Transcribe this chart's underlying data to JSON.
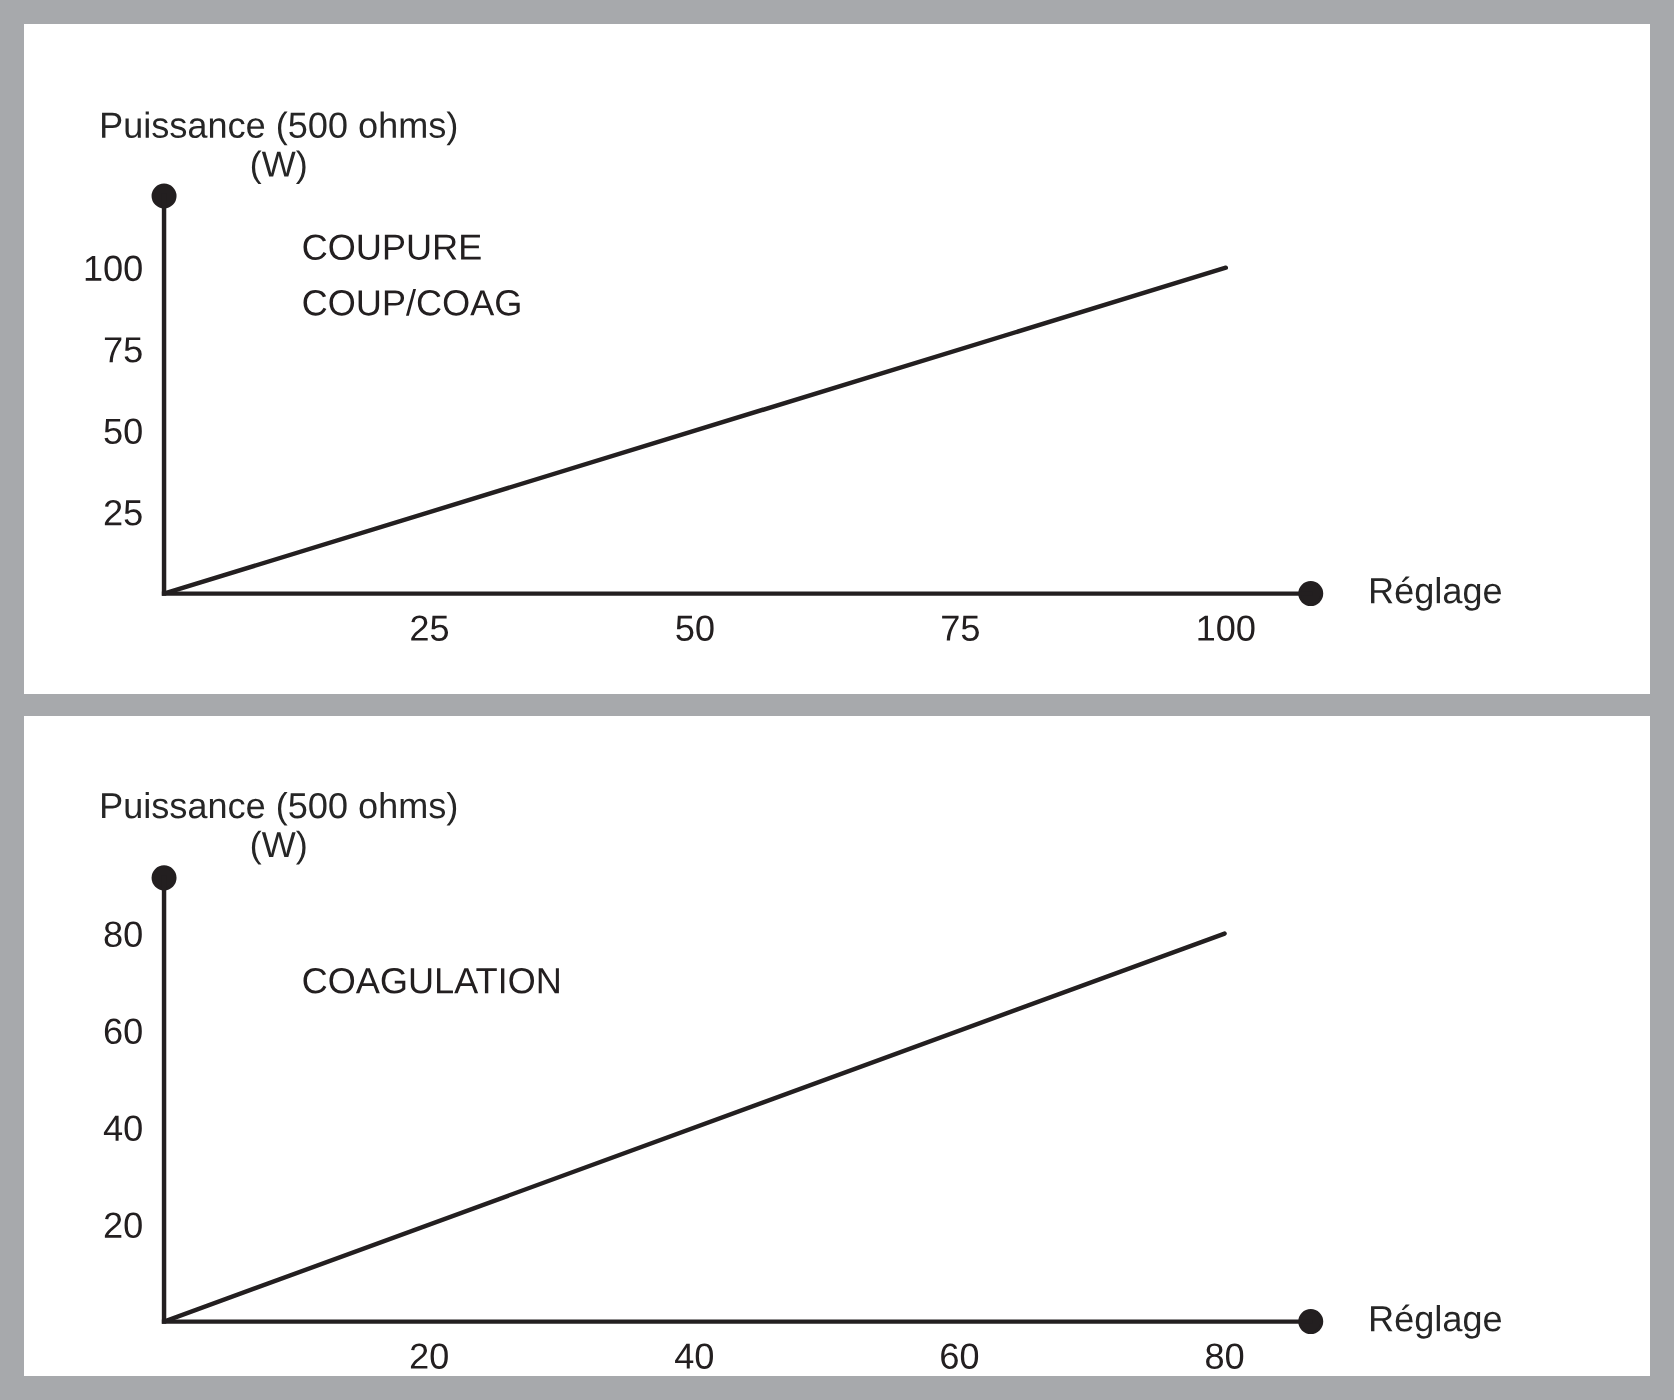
{
  "chart_data": [
    {
      "type": "line",
      "ylabel": "Puissance (500 ohms)\n(W)",
      "xlabel": "Réglage",
      "x": [
        0,
        100
      ],
      "series": [
        {
          "color": "#231f20",
          "values": [
            0,
            100
          ]
        }
      ],
      "xlim": [
        0,
        108
      ],
      "ylim": [
        0,
        122
      ],
      "xticks": [
        25,
        50,
        75,
        100
      ],
      "yticks": [
        25,
        50,
        75,
        100
      ],
      "annotations": [
        "COUPURE",
        "COUP/COAG"
      ],
      "grid": false,
      "marker": "none",
      "line_style": "solid"
    },
    {
      "type": "line",
      "ylabel": "Puissance (500 ohms)\n(W)",
      "xlabel": "Réglage",
      "x": [
        0,
        80
      ],
      "series": [
        {
          "color": "#231f20",
          "values": [
            0,
            80
          ]
        }
      ],
      "xlim": [
        0,
        86.5
      ],
      "ylim": [
        0,
        91.5
      ],
      "xticks": [
        20,
        40,
        60,
        80
      ],
      "yticks": [
        20,
        40,
        60,
        80
      ],
      "annotations": [
        "COAGULATION"
      ],
      "grid": false,
      "marker": "none",
      "line_style": "solid"
    }
  ]
}
